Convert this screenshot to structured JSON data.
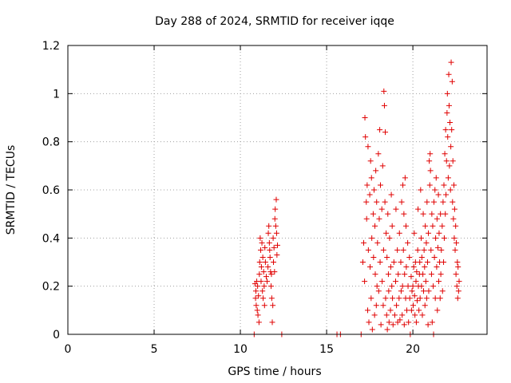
{
  "chart_data": {
    "type": "scatter",
    "title": "Day 288 of 2024, SRMTID for receiver iqqe",
    "xlabel": "GPS time / hours",
    "ylabel": "SRMTID / TECUs",
    "xlim": [
      0,
      24.3
    ],
    "ylim": [
      0,
      1.2
    ],
    "xticks": [
      0,
      5,
      10,
      15,
      20
    ],
    "xtick_labels": [
      "0",
      "5",
      "10",
      "15",
      "20"
    ],
    "yticks": [
      0,
      0.2,
      0.4,
      0.6,
      0.8,
      1.0,
      1.2
    ],
    "ytick_labels": [
      "0",
      "0.2",
      "0.4",
      "0.6",
      "0.8",
      "1",
      "1.2"
    ],
    "grid": true,
    "marker": "plus",
    "color": "#e00000",
    "series": [
      {
        "name": "SRMTID",
        "points": [
          [
            10.8,
            0.0
          ],
          [
            10.85,
            0.21
          ],
          [
            10.88,
            0.15
          ],
          [
            10.9,
            0.18
          ],
          [
            10.92,
            0.12
          ],
          [
            10.95,
            0.22
          ],
          [
            10.98,
            0.1
          ],
          [
            11.0,
            0.2
          ],
          [
            11.02,
            0.08
          ],
          [
            11.05,
            0.16
          ],
          [
            11.08,
            0.05
          ],
          [
            11.1,
            0.25
          ],
          [
            11.12,
            0.3
          ],
          [
            11.15,
            0.4
          ],
          [
            11.18,
            0.35
          ],
          [
            11.2,
            0.22
          ],
          [
            11.22,
            0.28
          ],
          [
            11.25,
            0.38
          ],
          [
            11.28,
            0.18
          ],
          [
            11.3,
            0.32
          ],
          [
            11.32,
            0.15
          ],
          [
            11.35,
            0.26
          ],
          [
            11.38,
            0.2
          ],
          [
            11.4,
            0.12
          ],
          [
            11.42,
            0.36
          ],
          [
            11.45,
            0.3
          ],
          [
            11.5,
            0.24
          ],
          [
            11.55,
            0.22
          ],
          [
            11.6,
            0.28
          ],
          [
            11.62,
            0.42
          ],
          [
            11.65,
            0.45
          ],
          [
            11.68,
            0.38
          ],
          [
            11.7,
            0.35
          ],
          [
            11.72,
            0.32
          ],
          [
            11.75,
            0.26
          ],
          [
            11.78,
            0.2
          ],
          [
            11.8,
            0.25
          ],
          [
            11.82,
            0.15
          ],
          [
            11.85,
            0.05
          ],
          [
            11.88,
            0.12
          ],
          [
            11.9,
            0.4
          ],
          [
            11.92,
            0.3
          ],
          [
            11.95,
            0.36
          ],
          [
            11.98,
            0.26
          ],
          [
            12.0,
            0.48
          ],
          [
            12.02,
            0.52
          ],
          [
            12.05,
            0.45
          ],
          [
            12.08,
            0.56
          ],
          [
            12.1,
            0.42
          ],
          [
            12.12,
            0.33
          ],
          [
            12.15,
            0.37
          ],
          [
            12.4,
            0.0
          ],
          [
            15.6,
            0.0
          ],
          [
            15.8,
            0.0
          ],
          [
            17.0,
            0.0
          ],
          [
            17.1,
            0.3
          ],
          [
            17.15,
            0.38
          ],
          [
            17.2,
            0.22
          ],
          [
            17.22,
            0.9
          ],
          [
            17.25,
            0.82
          ],
          [
            17.3,
            0.55
          ],
          [
            17.32,
            0.48
          ],
          [
            17.35,
            0.62
          ],
          [
            17.38,
            0.1
          ],
          [
            17.4,
            0.78
          ],
          [
            17.42,
            0.35
          ],
          [
            17.45,
            0.05
          ],
          [
            17.5,
            0.58
          ],
          [
            17.52,
            0.28
          ],
          [
            17.55,
            0.72
          ],
          [
            17.58,
            0.15
          ],
          [
            17.6,
            0.65
          ],
          [
            17.62,
            0.4
          ],
          [
            17.65,
            0.02
          ],
          [
            17.7,
            0.5
          ],
          [
            17.72,
            0.32
          ],
          [
            17.75,
            0.6
          ],
          [
            17.78,
            0.08
          ],
          [
            17.8,
            0.45
          ],
          [
            17.82,
            0.25
          ],
          [
            17.85,
            0.68
          ],
          [
            17.88,
            0.12
          ],
          [
            17.9,
            0.55
          ],
          [
            17.92,
            0.2
          ],
          [
            17.95,
            0.38
          ],
          [
            18.0,
            0.75
          ],
          [
            18.02,
            0.18
          ],
          [
            18.05,
            0.48
          ],
          [
            18.08,
            0.85
          ],
          [
            18.1,
            0.3
          ],
          [
            18.12,
            0.62
          ],
          [
            18.15,
            0.04
          ],
          [
            18.2,
            0.52
          ],
          [
            18.22,
            0.22
          ],
          [
            18.25,
            0.7
          ],
          [
            18.28,
            0.12
          ],
          [
            18.3,
            0.35
          ],
          [
            18.32,
            1.01
          ],
          [
            18.35,
            0.95
          ],
          [
            18.38,
            0.55
          ],
          [
            18.4,
            0.84
          ],
          [
            18.42,
            0.15
          ],
          [
            18.45,
            0.42
          ],
          [
            18.48,
            0.08
          ],
          [
            18.5,
            0.32
          ],
          [
            18.52,
            0.02
          ],
          [
            18.55,
            0.5
          ],
          [
            18.58,
            0.25
          ],
          [
            18.6,
            0.18
          ],
          [
            18.62,
            0.05
          ],
          [
            18.65,
            0.4
          ],
          [
            18.7,
            0.1
          ],
          [
            18.72,
            0.28
          ],
          [
            18.75,
            0.58
          ],
          [
            18.78,
            0.2
          ],
          [
            18.8,
            0.45
          ],
          [
            18.82,
            0.15
          ],
          [
            18.85,
            0.04
          ],
          [
            18.9,
            0.3
          ],
          [
            18.95,
            0.08
          ],
          [
            19.0,
            0.22
          ],
          [
            19.02,
            0.52
          ],
          [
            19.05,
            0.12
          ],
          [
            19.1,
            0.35
          ],
          [
            19.12,
            0.05
          ],
          [
            19.15,
            0.25
          ],
          [
            19.2,
            0.15
          ],
          [
            19.22,
            0.42
          ],
          [
            19.25,
            0.06
          ],
          [
            19.3,
            0.3
          ],
          [
            19.32,
            0.18
          ],
          [
            19.35,
            0.55
          ],
          [
            19.38,
            0.08
          ],
          [
            19.4,
            0.2
          ],
          [
            19.42,
            0.62
          ],
          [
            19.45,
            0.35
          ],
          [
            19.48,
            0.5
          ],
          [
            19.5,
            0.04
          ],
          [
            19.52,
            0.25
          ],
          [
            19.55,
            0.65
          ],
          [
            19.58,
            0.15
          ],
          [
            19.6,
            0.45
          ],
          [
            19.62,
            0.28
          ],
          [
            19.65,
            0.1
          ],
          [
            19.7,
            0.38
          ],
          [
            19.72,
            0.2
          ],
          [
            19.75,
            0.05
          ],
          [
            19.8,
            0.32
          ],
          [
            19.82,
            0.15
          ],
          [
            19.85,
            0.0
          ],
          [
            19.9,
            0.24
          ],
          [
            19.92,
            0.1
          ],
          [
            19.95,
            0.18
          ],
          [
            20.0,
            0.2
          ],
          [
            20.02,
            0.12
          ],
          [
            20.05,
            0.28
          ],
          [
            20.08,
            0.42
          ],
          [
            20.1,
            0.16
          ],
          [
            20.12,
            0.08
          ],
          [
            20.15,
            0.3
          ],
          [
            20.18,
            0.22
          ],
          [
            20.2,
            0.05
          ],
          [
            20.22,
            0.26
          ],
          [
            20.25,
            0.14
          ],
          [
            20.28,
            0.35
          ],
          [
            20.3,
            0.52
          ],
          [
            20.32,
            0.2
          ],
          [
            20.35,
            0.1
          ],
          [
            20.38,
            0.25
          ],
          [
            20.4,
            0.3
          ],
          [
            20.42,
            0.15
          ],
          [
            20.45,
            0.6
          ],
          [
            20.48,
            0.4
          ],
          [
            20.5,
            0.2
          ],
          [
            20.52,
            0.32
          ],
          [
            20.55,
            0.08
          ],
          [
            20.58,
            0.25
          ],
          [
            20.6,
            0.5
          ],
          [
            20.62,
            0.18
          ],
          [
            20.65,
            0.35
          ],
          [
            20.68,
            0.28
          ],
          [
            20.7,
            0.12
          ],
          [
            20.72,
            0.45
          ],
          [
            20.75,
            0.22
          ],
          [
            20.78,
            0.38
          ],
          [
            20.8,
            0.15
          ],
          [
            20.82,
            0.55
          ],
          [
            20.85,
            0.3
          ],
          [
            20.88,
            0.04
          ],
          [
            20.9,
            0.42
          ],
          [
            20.92,
            0.18
          ],
          [
            20.95,
            0.72
          ],
          [
            20.98,
            0.62
          ],
          [
            21.0,
            0.75
          ],
          [
            21.02,
            0.68
          ],
          [
            21.05,
            0.35
          ],
          [
            21.08,
            0.25
          ],
          [
            21.1,
            0.5
          ],
          [
            21.12,
            0.05
          ],
          [
            21.15,
            0.45
          ],
          [
            21.18,
            0.2
          ],
          [
            21.2,
            0.0
          ],
          [
            21.22,
            0.55
          ],
          [
            21.25,
            0.32
          ],
          [
            21.28,
            0.6
          ],
          [
            21.3,
            0.15
          ],
          [
            21.32,
            0.4
          ],
          [
            21.35,
            0.65
          ],
          [
            21.38,
            0.28
          ],
          [
            21.4,
            0.48
          ],
          [
            21.42,
            0.1
          ],
          [
            21.45,
            0.36
          ],
          [
            21.48,
            0.58
          ],
          [
            21.5,
            0.22
          ],
          [
            21.52,
            0.42
          ],
          [
            21.55,
            0.3
          ],
          [
            21.58,
            0.15
          ],
          [
            21.6,
            0.5
          ],
          [
            21.62,
            0.25
          ],
          [
            21.65,
            0.35
          ],
          [
            21.7,
            0.45
          ],
          [
            21.72,
            0.18
          ],
          [
            21.75,
            0.55
          ],
          [
            21.78,
            0.3
          ],
          [
            21.8,
            0.62
          ],
          [
            21.82,
            0.4
          ],
          [
            21.85,
            0.75
          ],
          [
            21.88,
            0.5
          ],
          [
            21.9,
            0.85
          ],
          [
            21.92,
            0.58
          ],
          [
            21.95,
            0.72
          ],
          [
            21.98,
            0.92
          ],
          [
            22.0,
            1.0
          ],
          [
            22.02,
            0.82
          ],
          [
            22.05,
            0.65
          ],
          [
            22.08,
            1.08
          ],
          [
            22.1,
            0.95
          ],
          [
            22.12,
            0.7
          ],
          [
            22.15,
            0.88
          ],
          [
            22.18,
            0.6
          ],
          [
            22.2,
            0.78
          ],
          [
            22.22,
            1.13
          ],
          [
            22.25,
            0.85
          ],
          [
            22.28,
            1.05
          ],
          [
            22.3,
            0.55
          ],
          [
            22.32,
            0.72
          ],
          [
            22.35,
            0.48
          ],
          [
            22.38,
            0.62
          ],
          [
            22.4,
            0.4
          ],
          [
            22.42,
            0.52
          ],
          [
            22.45,
            0.35
          ],
          [
            22.48,
            0.45
          ],
          [
            22.5,
            0.25
          ],
          [
            22.52,
            0.38
          ],
          [
            22.55,
            0.2
          ],
          [
            22.58,
            0.3
          ],
          [
            22.6,
            0.15
          ],
          [
            22.62,
            0.28
          ],
          [
            22.65,
            0.18
          ],
          [
            22.68,
            0.22
          ]
        ]
      }
    ]
  }
}
